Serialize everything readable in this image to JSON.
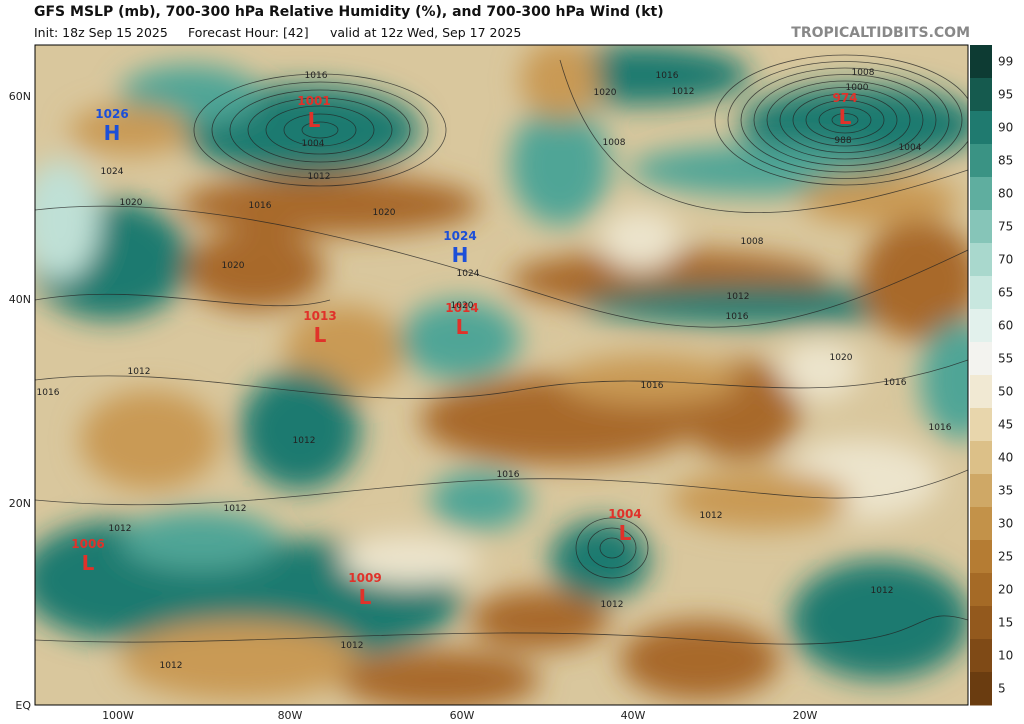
{
  "header": {
    "title": "GFS MSLP (mb), 700-300 hPa Relative Humidity (%), and 700-300 hPa Wind (kt)",
    "init": "Init: 18z Sep 15 2025",
    "forecast_hour": "Forecast Hour: [42]",
    "valid": "valid at 12z Wed, Sep 17 2025",
    "watermark": "TROPICALTIDBITS.COM"
  },
  "map": {
    "lat_labels": [
      "60N",
      "40N",
      "20N",
      "EQ"
    ],
    "lon_labels": [
      "100W",
      "80W",
      "60W",
      "40W",
      "20W"
    ],
    "pressure_centers": [
      {
        "value": "1026",
        "letter": "H"
      },
      {
        "value": "1001",
        "letter": "L"
      },
      {
        "value": "1024",
        "letter": "H"
      },
      {
        "value": "1013",
        "letter": "L"
      },
      {
        "value": "1014",
        "letter": "L"
      },
      {
        "value": "974",
        "letter": "L"
      },
      {
        "value": "1004",
        "letter": "L"
      },
      {
        "value": "1006",
        "letter": "L"
      },
      {
        "value": "1009",
        "letter": "L"
      }
    ],
    "isobar_labels": [
      "1016",
      "1020",
      "1016",
      "1012",
      "1008",
      "1000",
      "1008",
      "988",
      "1004",
      "1004",
      "1012",
      "1024",
      "1020",
      "1016",
      "1020",
      "1020",
      "1024",
      "1008",
      "1012",
      "1016",
      "1020",
      "1020",
      "1016",
      "1016",
      "1012",
      "1016",
      "1012",
      "1016",
      "1016",
      "1012",
      "1012",
      "1012",
      "1012",
      "1012",
      "1012",
      "1012"
    ]
  },
  "colorbar": {
    "ticks": [
      "99",
      "95",
      "90",
      "85",
      "80",
      "75",
      "70",
      "65",
      "60",
      "55",
      "50",
      "45",
      "40",
      "35",
      "30",
      "25",
      "20",
      "15",
      "10",
      "5"
    ]
  }
}
